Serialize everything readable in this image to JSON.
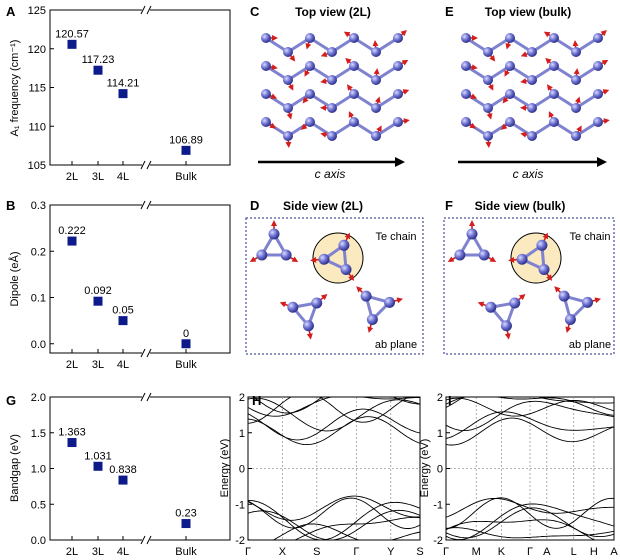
{
  "panel_letters": [
    "A",
    "B",
    "C",
    "D",
    "E",
    "F",
    "G",
    "H",
    "I"
  ],
  "chart_data": [
    {
      "type": "scatter",
      "panel": "A",
      "categories": [
        "2L",
        "3L",
        "4L",
        "Bulk"
      ],
      "values": [
        120.57,
        117.23,
        114.21,
        106.89
      ],
      "value_labels": [
        "120.57",
        "117.23",
        "114.21",
        "106.89"
      ],
      "ylabel": "A₁ frequency (cm⁻¹)",
      "ylim": [
        105,
        125
      ],
      "yticks": [
        "105",
        "110",
        "115",
        "120",
        "125"
      ],
      "axis_break": "//",
      "marker_color": "#0d1a8a"
    },
    {
      "type": "scatter",
      "panel": "B",
      "categories": [
        "2L",
        "3L",
        "4L",
        "Bulk"
      ],
      "values": [
        0.222,
        0.092,
        0.05,
        0
      ],
      "value_labels": [
        "0.222",
        "0.092",
        "0.05",
        "0"
      ],
      "ylabel": "Dipole (eÅ)",
      "ylim": [
        -0.02,
        0.3
      ],
      "yticks": [
        "0.0",
        "0.1",
        "0.2",
        "0.3"
      ],
      "axis_break": "//",
      "marker_color": "#0d1a8a"
    },
    {
      "type": "scatter",
      "panel": "G",
      "categories": [
        "2L",
        "3L",
        "4L",
        "Bulk"
      ],
      "values": [
        1.363,
        1.031,
        0.838,
        0.23
      ],
      "value_labels": [
        "1.363",
        "1.031",
        "0.838",
        "0.23"
      ],
      "ylabel": "Bandgap (eV)",
      "ylim": [
        0,
        2.0
      ],
      "yticks": [
        "0.0",
        "0.5",
        "1.0",
        "1.5",
        "2.0"
      ],
      "axis_break": "//",
      "marker_color": "#0d1a8a"
    },
    {
      "type": "line",
      "panel": "H",
      "ylabel": "Energy (eV)",
      "ylim": [
        -2,
        2
      ],
      "yticks": [
        "-2",
        "-1",
        "0",
        "1",
        "2"
      ],
      "kpoints": [
        "Γ",
        "X",
        "S",
        "Γ",
        "Y",
        "S"
      ]
    },
    {
      "type": "line",
      "panel": "I",
      "ylabel": "Energy (eV)",
      "ylim": [
        -2,
        2
      ],
      "yticks": [
        "-2",
        "-1",
        "0",
        "1",
        "2"
      ],
      "kpoints": [
        "Γ",
        "M",
        "K",
        "Γ",
        "A",
        "L",
        "H",
        "A"
      ]
    }
  ],
  "structures": {
    "C": {
      "title": "Top view (2L)",
      "axis": "c axis"
    },
    "E": {
      "title": "Top view (bulk)",
      "axis": "c axis"
    },
    "D": {
      "title": "Side view (2L)",
      "chain_label": "Te chain",
      "plane_label": "ab plane"
    },
    "F": {
      "title": "Side view (bulk)",
      "chain_label": "Te chain",
      "plane_label": "ab plane"
    }
  },
  "colors": {
    "atom": "#6b6fd0",
    "bond": "#7f82cf",
    "arrow": "#d41e1e",
    "chain_fill": "#fbe9c0",
    "frame": "#1f2a8a"
  }
}
